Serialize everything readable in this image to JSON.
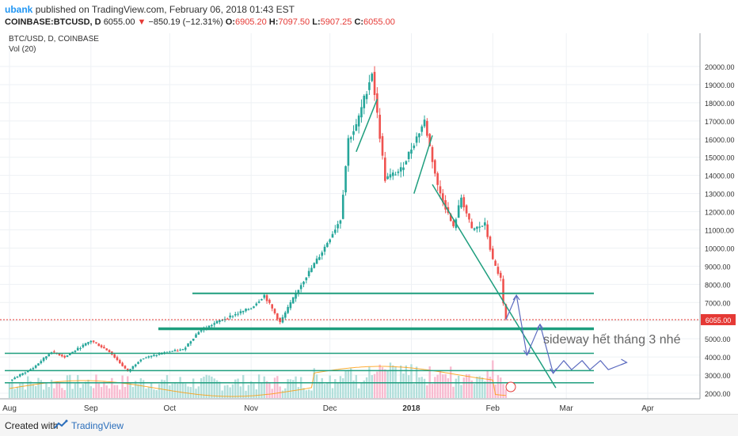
{
  "header": {
    "author": "ubank",
    "published_text": "published on TradingView.com, February 06, 2018 01:43 EST",
    "symbol": "COINBASE:BTCUSD, D",
    "last": "6055.00",
    "change": "−850.19 (−12.31%)",
    "open_label": "O:",
    "open": "6905.20",
    "high_label": "H:",
    "high": "7097.50",
    "low_label": "L:",
    "low": "5907.25",
    "close_label": "C:",
    "close": "6055.00"
  },
  "footer": {
    "created_with": "Created with",
    "brand": "TradingView"
  },
  "colors": {
    "up": "#26a69a",
    "down": "#ef5350",
    "vol_up": "#b2dfdb",
    "vol_down": "#f8bbd0",
    "trend": "#1e9e7e",
    "annotation": "#5c6bc0",
    "price_tag": "#e53935",
    "ma": "#ff9800"
  },
  "chart_data": {
    "type": "candlestick",
    "title": "BTC/USD, D, COINBASE",
    "indicator_label": "Vol (20)",
    "x_tick_labels": [
      "Aug",
      "Sep",
      "Oct",
      "Nov",
      "Dec",
      "2018",
      "Feb",
      "Mar",
      "Apr"
    ],
    "y_ticks": [
      "2000.00",
      "3000.00",
      "4000.00",
      "5000.00",
      "6000.00",
      "7000.00",
      "8000.00",
      "9000.00",
      "10000.00",
      "11000.00",
      "12000.00",
      "13000.00",
      "14000.00",
      "15000.00",
      "16000.00",
      "17000.00",
      "18000.00",
      "19000.00",
      "20000.00"
    ],
    "ylim": [
      1500,
      20800
    ],
    "last_price": 6055,
    "last_price_label": "6055.00",
    "horizontal_levels": [
      7500,
      5550,
      4200,
      3250,
      2580
    ],
    "annotation_text": "sideway hết tháng 3 nhé",
    "price_path": [
      [
        "2017-08-01",
        2700
      ],
      [
        "2017-08-10",
        3400
      ],
      [
        "2017-08-17",
        4300
      ],
      [
        "2017-08-22",
        4000
      ],
      [
        "2017-09-01",
        4900
      ],
      [
        "2017-09-08",
        4300
      ],
      [
        "2017-09-15",
        3200
      ],
      [
        "2017-09-20",
        3900
      ],
      [
        "2017-10-01",
        4300
      ],
      [
        "2017-10-06",
        4400
      ],
      [
        "2017-10-12",
        5400
      ],
      [
        "2017-10-20",
        6000
      ],
      [
        "2017-11-01",
        6700
      ],
      [
        "2017-11-06",
        7400
      ],
      [
        "2017-11-12",
        5900
      ],
      [
        "2017-11-20",
        8000
      ],
      [
        "2017-11-28",
        9800
      ],
      [
        "2017-12-05",
        11600
      ],
      [
        "2017-12-08",
        16000
      ],
      [
        "2017-12-11",
        16700
      ],
      [
        "2017-12-17",
        19700
      ],
      [
        "2017-12-22",
        13800
      ],
      [
        "2017-12-28",
        14300
      ],
      [
        "2018-01-06",
        17000
      ],
      [
        "2018-01-11",
        13400
      ],
      [
        "2018-01-17",
        11100
      ],
      [
        "2018-01-20",
        12800
      ],
      [
        "2018-01-24",
        11000
      ],
      [
        "2018-01-29",
        11300
      ],
      [
        "2018-02-01",
        9300
      ],
      [
        "2018-02-04",
        8300
      ],
      [
        "2018-02-05",
        6900
      ],
      [
        "2018-02-06",
        6055
      ]
    ],
    "trend_lines": [
      {
        "from": [
          "2018-01-09",
          13500
        ],
        "to": [
          "2018-02-25",
          2300
        ]
      }
    ],
    "projection_path": [
      [
        "2018-02-06",
        6055
      ],
      [
        "2018-02-10",
        7400
      ],
      [
        "2018-02-14",
        4100
      ],
      [
        "2018-02-19",
        5800
      ],
      [
        "2018-02-24",
        3100
      ],
      [
        "2018-02-28",
        3800
      ],
      [
        "2018-03-03",
        3300
      ],
      [
        "2018-03-07",
        3800
      ],
      [
        "2018-03-10",
        3300
      ],
      [
        "2018-03-14",
        3800
      ],
      [
        "2018-03-17",
        3300
      ],
      [
        "2018-03-24",
        3700
      ]
    ]
  }
}
